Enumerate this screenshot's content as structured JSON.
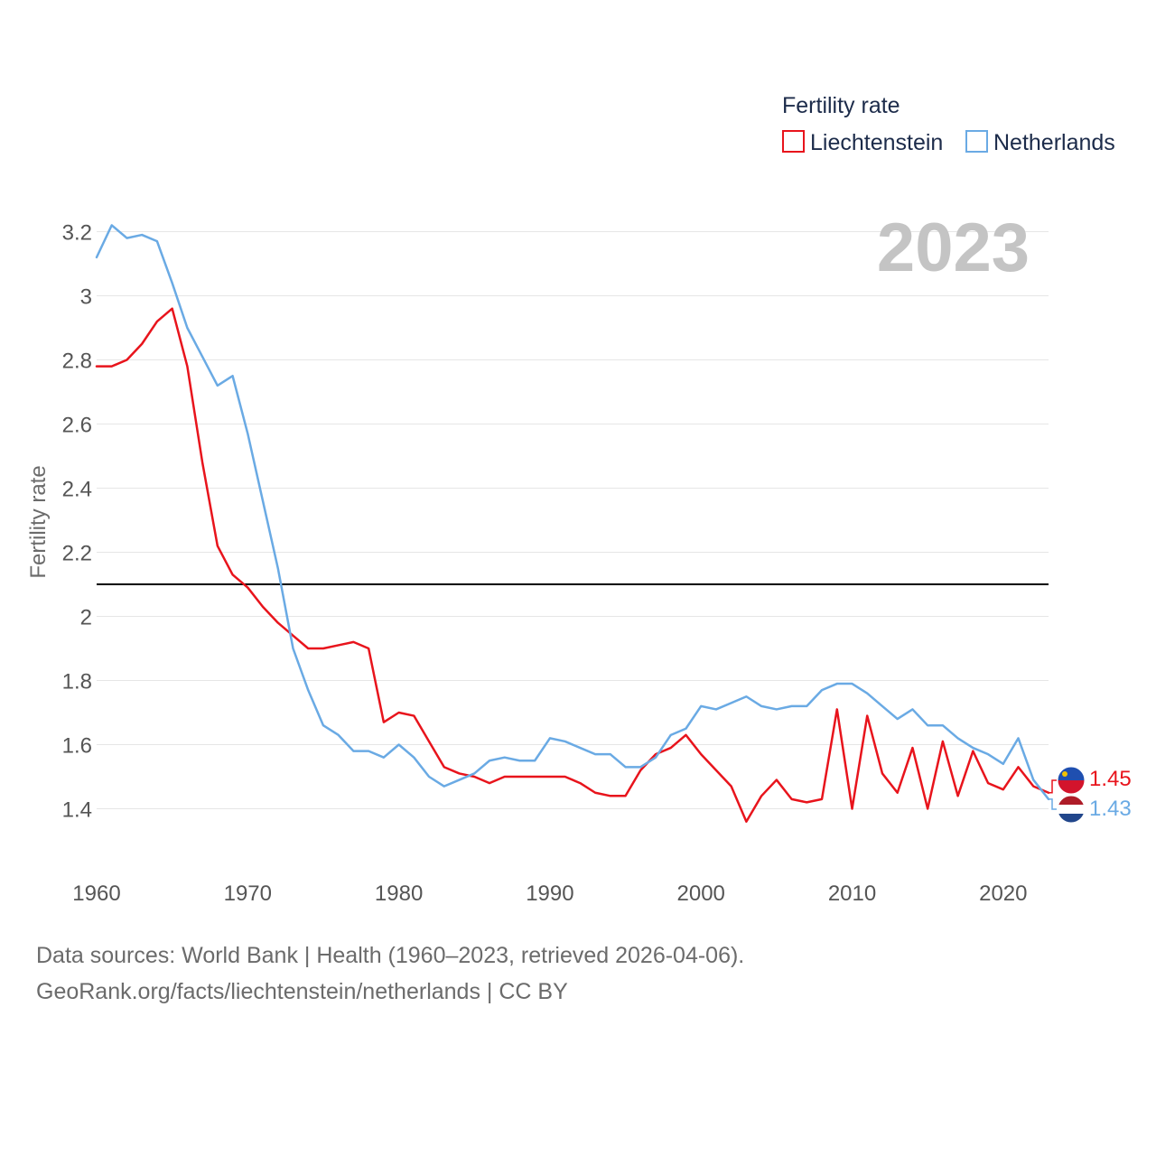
{
  "chart_data": {
    "type": "line",
    "title": "Fertility rate",
    "watermark_year": "2023",
    "ylabel": "Fertility rate",
    "xlabel": "",
    "xlim": [
      1960,
      2023
    ],
    "ylim": [
      1.25,
      3.25
    ],
    "x_ticks": [
      "1960",
      "1970",
      "1980",
      "1990",
      "2000",
      "2010",
      "2020"
    ],
    "y_ticks": [
      "1.4",
      "1.6",
      "1.8",
      "2",
      "2.2",
      "2.4",
      "2.6",
      "2.8",
      "3",
      "3.2"
    ],
    "reference_line": {
      "y": 2.1,
      "color": "#000000"
    },
    "legend_position": "top-right",
    "x": [
      1960,
      1961,
      1962,
      1963,
      1964,
      1965,
      1966,
      1967,
      1968,
      1969,
      1970,
      1971,
      1972,
      1973,
      1974,
      1975,
      1976,
      1977,
      1978,
      1979,
      1980,
      1981,
      1982,
      1983,
      1984,
      1985,
      1986,
      1987,
      1988,
      1989,
      1990,
      1991,
      1992,
      1993,
      1994,
      1995,
      1996,
      1997,
      1998,
      1999,
      2000,
      2001,
      2002,
      2003,
      2004,
      2005,
      2006,
      2007,
      2008,
      2009,
      2010,
      2011,
      2012,
      2013,
      2014,
      2015,
      2016,
      2017,
      2018,
      2019,
      2020,
      2021,
      2022,
      2023
    ],
    "series": [
      {
        "name": "Liechtenstein",
        "color": "#e8141c",
        "end_label": "1.45",
        "values": [
          2.78,
          2.78,
          2.8,
          2.85,
          2.92,
          2.96,
          2.78,
          2.48,
          2.22,
          2.13,
          2.09,
          2.03,
          1.98,
          1.94,
          1.9,
          1.9,
          1.91,
          1.92,
          1.9,
          1.67,
          1.7,
          1.69,
          1.61,
          1.53,
          1.51,
          1.5,
          1.48,
          1.5,
          1.5,
          1.5,
          1.5,
          1.5,
          1.48,
          1.45,
          1.44,
          1.44,
          1.52,
          1.57,
          1.59,
          1.63,
          1.57,
          1.52,
          1.47,
          1.36,
          1.44,
          1.49,
          1.43,
          1.42,
          1.43,
          1.71,
          1.4,
          1.69,
          1.51,
          1.45,
          1.59,
          1.4,
          1.61,
          1.44,
          1.58,
          1.48,
          1.46,
          1.53,
          1.47,
          1.45
        ]
      },
      {
        "name": "Netherlands",
        "color": "#6aaae4",
        "end_label": "1.43",
        "values": [
          3.12,
          3.22,
          3.18,
          3.19,
          3.17,
          3.04,
          2.9,
          2.81,
          2.72,
          2.75,
          2.57,
          2.36,
          2.15,
          1.9,
          1.77,
          1.66,
          1.63,
          1.58,
          1.58,
          1.56,
          1.6,
          1.56,
          1.5,
          1.47,
          1.49,
          1.51,
          1.55,
          1.56,
          1.55,
          1.55,
          1.62,
          1.61,
          1.59,
          1.57,
          1.57,
          1.53,
          1.53,
          1.56,
          1.63,
          1.65,
          1.72,
          1.71,
          1.73,
          1.75,
          1.72,
          1.71,
          1.72,
          1.72,
          1.77,
          1.79,
          1.79,
          1.76,
          1.72,
          1.68,
          1.71,
          1.66,
          1.66,
          1.62,
          1.59,
          1.57,
          1.54,
          1.62,
          1.49,
          1.43
        ]
      }
    ]
  },
  "footer": {
    "line1": "Data sources: World Bank | Health (1960–2023, retrieved 2026-04-06).",
    "line2": "GeoRank.org/facts/liechtenstein/netherlands | CC BY"
  }
}
